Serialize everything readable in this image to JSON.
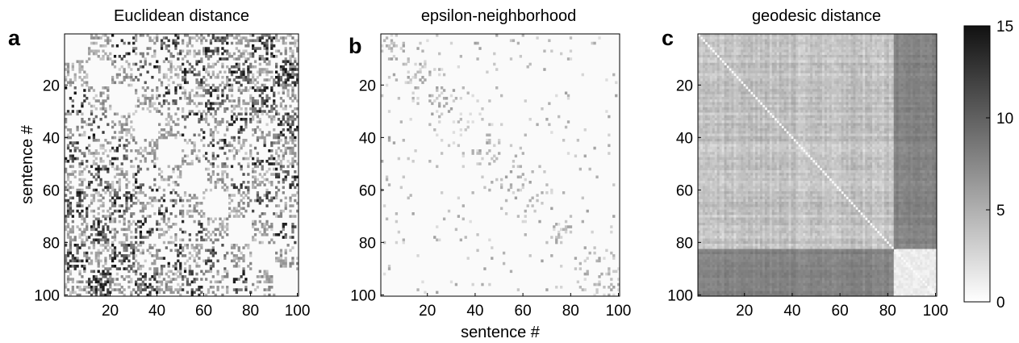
{
  "figure": {
    "xlabel": "sentence #",
    "ylabel": "sentence #"
  },
  "chart_data": [
    {
      "type": "heatmap",
      "panel": "a",
      "title": "Euclidean distance",
      "xlabel": "",
      "ylabel": "sentence #",
      "rows": 100,
      "cols": 100,
      "xlim": [
        1,
        100
      ],
      "ylim": [
        1,
        100
      ],
      "xticks": [
        "20",
        "40",
        "60",
        "80",
        "100"
      ],
      "yticks": [
        "20",
        "40",
        "60",
        "80",
        "100"
      ],
      "pattern": "block checkerboard: low distance on diagonal blocks, high distance scattered in off-diagonal blocks",
      "value_range": [
        0,
        15
      ]
    },
    {
      "type": "heatmap",
      "panel": "b",
      "title": "epsilon-neighborhood",
      "xlabel": "sentence #",
      "ylabel": "",
      "rows": 100,
      "cols": 100,
      "xlim": [
        1,
        100
      ],
      "ylim": [
        1,
        100
      ],
      "xticks": [
        "20",
        "40",
        "60",
        "80",
        "100"
      ],
      "yticks": [
        "20",
        "40",
        "60",
        "80",
        "100"
      ],
      "pattern": "sparse: mostly near-zero with light dots clustered in blocks",
      "value_range": [
        0,
        15
      ]
    },
    {
      "type": "heatmap",
      "panel": "c",
      "title": "geodesic distance",
      "xlabel": "",
      "ylabel": "",
      "rows": 100,
      "cols": 100,
      "xlim": [
        1,
        100
      ],
      "ylim": [
        1,
        100
      ],
      "xticks": [
        "20",
        "40",
        "60",
        "80",
        "100"
      ],
      "yticks": [
        "20",
        "40",
        "60",
        "80",
        "100"
      ],
      "pattern": "two clusters: sentences 1-82 mutually close, 83-100 mutually close, large distance between clusters; zero diagonal",
      "value_range": [
        0,
        15
      ]
    }
  ],
  "colorbar": {
    "min": 0,
    "max": 15,
    "ticks": [
      "0",
      "5",
      "10",
      "15"
    ],
    "colormap": "gray-reversed"
  },
  "colors": {
    "low": "#ffffff",
    "high": "#000000"
  }
}
